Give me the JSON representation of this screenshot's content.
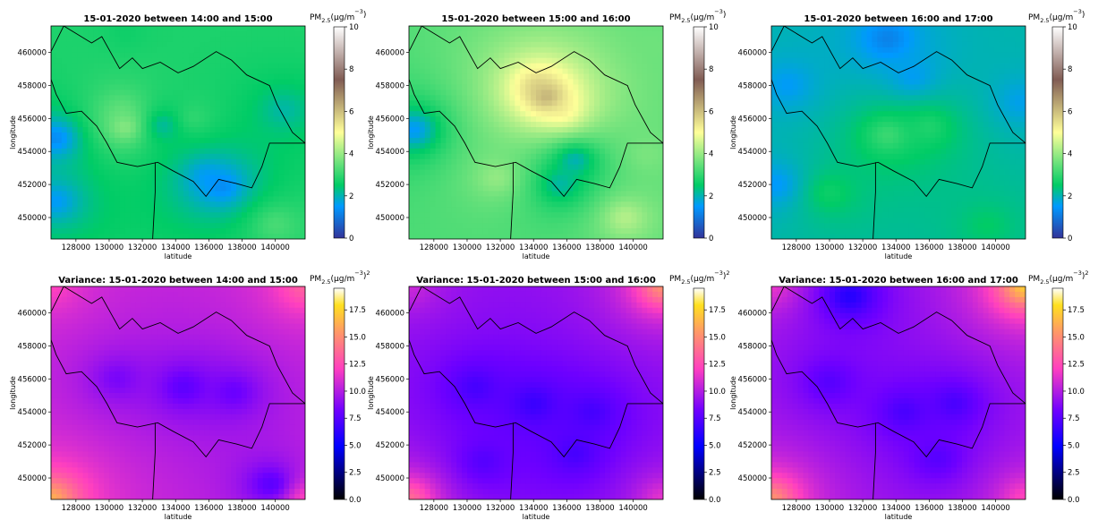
{
  "chart_data": [
    {
      "type": "heatmap",
      "title": "15-01-2020 between 14:00 and 15:00",
      "xlabel": "latitude",
      "ylabel": "longitude",
      "xlim": [
        126500,
        141800
      ],
      "ylim": [
        448700,
        461600
      ],
      "x_ticks": [
        "128000",
        "130000",
        "132000",
        "134000",
        "136000",
        "138000",
        "140000"
      ],
      "y_ticks": [
        "450000",
        "452000",
        "454000",
        "456000",
        "458000",
        "460000"
      ],
      "colorbar": {
        "label_main": "PM",
        "label_sub": "2.5",
        "label_unit": "(µg/m",
        "label_exp": "−3",
        "label_close": ")",
        "label_power": "",
        "range": [
          0,
          10
        ],
        "ticks": [
          "0",
          "2",
          "4",
          "6",
          "8",
          "10"
        ],
        "colormap": "terrain"
      },
      "hotspots": [
        {
          "x": 126800,
          "y": 454800,
          "value": 0.8
        },
        {
          "x": 126800,
          "y": 451000,
          "value": 1.2
        },
        {
          "x": 136800,
          "y": 451900,
          "value": 0.8
        },
        {
          "x": 135800,
          "y": 452500,
          "value": 1.3
        },
        {
          "x": 133200,
          "y": 455600,
          "value": 1.6
        },
        {
          "x": 131000,
          "y": 455500,
          "value": 4.5
        },
        {
          "x": 130800,
          "y": 456500,
          "value": 3.6
        },
        {
          "x": 135000,
          "y": 456000,
          "value": 3.2
        },
        {
          "x": 140500,
          "y": 456500,
          "value": 1.9
        },
        {
          "x": 140000,
          "y": 449600,
          "value": 3.4
        },
        {
          "x": 131000,
          "y": 461200,
          "value": 2.6
        }
      ],
      "base_value": 2.9
    },
    {
      "type": "heatmap",
      "title": "15-01-2020 between 15:00 and 16:00",
      "xlabel": "latitude",
      "ylabel": "longitude",
      "xlim": [
        126500,
        141800
      ],
      "ylim": [
        448700,
        461600
      ],
      "x_ticks": [
        "128000",
        "130000",
        "132000",
        "134000",
        "136000",
        "138000",
        "140000"
      ],
      "y_ticks": [
        "450000",
        "452000",
        "454000",
        "456000",
        "458000",
        "460000"
      ],
      "colorbar": {
        "label_main": "PM",
        "label_sub": "2.5",
        "label_unit": "(µg/m",
        "label_exp": "−3",
        "label_close": ")",
        "label_power": "",
        "range": [
          0,
          10
        ],
        "ticks": [
          "0",
          "2",
          "4",
          "6",
          "8",
          "10"
        ],
        "colormap": "terrain"
      },
      "hotspots": [
        {
          "x": 134800,
          "y": 457300,
          "value": 7.2
        },
        {
          "x": 134200,
          "y": 458000,
          "value": 6.0
        },
        {
          "x": 135800,
          "y": 456400,
          "value": 5.5
        },
        {
          "x": 126800,
          "y": 455300,
          "value": 1.0
        },
        {
          "x": 136500,
          "y": 453500,
          "value": 1.3
        },
        {
          "x": 135600,
          "y": 452000,
          "value": 1.6
        },
        {
          "x": 131800,
          "y": 452400,
          "value": 4.2
        },
        {
          "x": 139500,
          "y": 450000,
          "value": 4.6
        },
        {
          "x": 140800,
          "y": 453800,
          "value": 3.8
        },
        {
          "x": 141500,
          "y": 460500,
          "value": 3.6
        }
      ],
      "base_value": 3.2
    },
    {
      "type": "heatmap",
      "title": "15-01-2020 between 16:00 and 17:00",
      "xlabel": "latitude",
      "ylabel": "longitude",
      "xlim": [
        126500,
        141800
      ],
      "ylim": [
        448700,
        461600
      ],
      "x_ticks": [
        "128000",
        "130000",
        "132000",
        "134000",
        "136000",
        "138000",
        "140000"
      ],
      "y_ticks": [
        "450000",
        "452000",
        "454000",
        "456000",
        "458000",
        "460000"
      ],
      "colorbar": {
        "label_main": "PM",
        "label_sub": "2.5",
        "label_unit": "(µg/m",
        "label_exp": "−3",
        "label_close": ")",
        "label_power": "",
        "range": [
          0,
          10
        ],
        "ticks": [
          "0",
          "2",
          "4",
          "6",
          "8",
          "10"
        ],
        "colormap": "terrain"
      },
      "hotspots": [
        {
          "x": 133500,
          "y": 460800,
          "value": 0.9
        },
        {
          "x": 135000,
          "y": 458500,
          "value": 1.4
        },
        {
          "x": 127500,
          "y": 458000,
          "value": 1.4
        },
        {
          "x": 126800,
          "y": 452000,
          "value": 1.3
        },
        {
          "x": 133500,
          "y": 455000,
          "value": 3.4
        },
        {
          "x": 136000,
          "y": 455500,
          "value": 3.0
        },
        {
          "x": 130000,
          "y": 451500,
          "value": 2.8
        },
        {
          "x": 139500,
          "y": 449500,
          "value": 2.6
        },
        {
          "x": 141500,
          "y": 457000,
          "value": 1.5
        }
      ],
      "base_value": 2.1
    },
    {
      "type": "heatmap",
      "title": "Variance: 15-01-2020 between 14:00 and 15:00",
      "xlabel": "latitude",
      "ylabel": "longitude",
      "xlim": [
        126500,
        141800
      ],
      "ylim": [
        448700,
        461600
      ],
      "x_ticks": [
        "128000",
        "130000",
        "132000",
        "134000",
        "136000",
        "138000",
        "140000"
      ],
      "y_ticks": [
        "450000",
        "452000",
        "454000",
        "456000",
        "458000",
        "460000"
      ],
      "colorbar": {
        "label_main": "PM",
        "label_sub": "2.5",
        "label_unit": "(µg/m",
        "label_exp": "−3",
        "label_close": ")",
        "label_power": "2",
        "range": [
          0,
          19.5
        ],
        "ticks": [
          "0.0",
          "2.5",
          "5.0",
          "7.5",
          "10.0",
          "12.5",
          "15.0",
          "17.5"
        ],
        "colormap": "gnuplot2"
      },
      "hotspots": [
        {
          "x": 134500,
          "y": 455500,
          "value": 7.0
        },
        {
          "x": 130500,
          "y": 456000,
          "value": 8.0
        },
        {
          "x": 137500,
          "y": 455200,
          "value": 7.5
        },
        {
          "x": 139800,
          "y": 449600,
          "value": 6.5
        },
        {
          "x": 126500,
          "y": 448700,
          "value": 17.5
        },
        {
          "x": 141800,
          "y": 461600,
          "value": 14.0
        },
        {
          "x": 126500,
          "y": 461600,
          "value": 12.5
        },
        {
          "x": 141800,
          "y": 448700,
          "value": 13.0
        }
      ],
      "base_value": 10.5
    },
    {
      "type": "heatmap",
      "title": "Variance: 15-01-2020 between 15:00 and 16:00",
      "xlabel": "latitude",
      "ylabel": "longitude",
      "xlim": [
        126500,
        141800
      ],
      "ylim": [
        448700,
        461600
      ],
      "x_ticks": [
        "128000",
        "130000",
        "132000",
        "134000",
        "136000",
        "138000",
        "140000"
      ],
      "y_ticks": [
        "450000",
        "452000",
        "454000",
        "456000",
        "458000",
        "460000"
      ],
      "colorbar": {
        "label_main": "PM",
        "label_sub": "2.5",
        "label_unit": "(µg/m",
        "label_exp": "−3",
        "label_close": ")",
        "label_power": "2",
        "range": [
          0,
          19.5
        ],
        "ticks": [
          "0.0",
          "2.5",
          "5.0",
          "7.5",
          "10.0",
          "12.5",
          "15.0",
          "17.5"
        ],
        "colormap": "gnuplot2"
      },
      "hotspots": [
        {
          "x": 134000,
          "y": 454500,
          "value": 6.0
        },
        {
          "x": 130500,
          "y": 455500,
          "value": 6.5
        },
        {
          "x": 137500,
          "y": 454000,
          "value": 6.5
        },
        {
          "x": 136500,
          "y": 451500,
          "value": 6.5
        },
        {
          "x": 131000,
          "y": 451000,
          "value": 7.0
        },
        {
          "x": 126500,
          "y": 448700,
          "value": 15.0
        },
        {
          "x": 141800,
          "y": 461600,
          "value": 16.5
        },
        {
          "x": 126500,
          "y": 461600,
          "value": 11.0
        },
        {
          "x": 141800,
          "y": 448700,
          "value": 12.0
        }
      ],
      "base_value": 9.0
    },
    {
      "type": "heatmap",
      "title": "Variance: 15-01-2020 between 16:00 and 17:00",
      "xlabel": "latitude",
      "ylabel": "longitude",
      "xlim": [
        126500,
        141800
      ],
      "ylim": [
        448700,
        461600
      ],
      "x_ticks": [
        "128000",
        "130000",
        "132000",
        "134000",
        "136000",
        "138000",
        "140000"
      ],
      "y_ticks": [
        "450000",
        "452000",
        "454000",
        "456000",
        "458000",
        "460000"
      ],
      "colorbar": {
        "label_main": "PM",
        "label_sub": "2.5",
        "label_unit": "(µg/m",
        "label_exp": "−3",
        "label_close": ")",
        "label_power": "2",
        "range": [
          0,
          19.5
        ],
        "ticks": [
          "0.0",
          "2.5",
          "5.0",
          "7.5",
          "10.0",
          "12.5",
          "15.0",
          "17.5"
        ],
        "colormap": "gnuplot2"
      },
      "hotspots": [
        {
          "x": 134500,
          "y": 454000,
          "value": 6.5
        },
        {
          "x": 130000,
          "y": 455800,
          "value": 7.0
        },
        {
          "x": 137500,
          "y": 454500,
          "value": 6.5
        },
        {
          "x": 136500,
          "y": 451200,
          "value": 7.0
        },
        {
          "x": 131200,
          "y": 461000,
          "value": 5.0
        },
        {
          "x": 126500,
          "y": 448700,
          "value": 16.5
        },
        {
          "x": 141800,
          "y": 461600,
          "value": 19.0
        },
        {
          "x": 126500,
          "y": 461600,
          "value": 12.0
        },
        {
          "x": 141800,
          "y": 448700,
          "value": 13.0
        }
      ],
      "base_value": 9.5
    }
  ]
}
